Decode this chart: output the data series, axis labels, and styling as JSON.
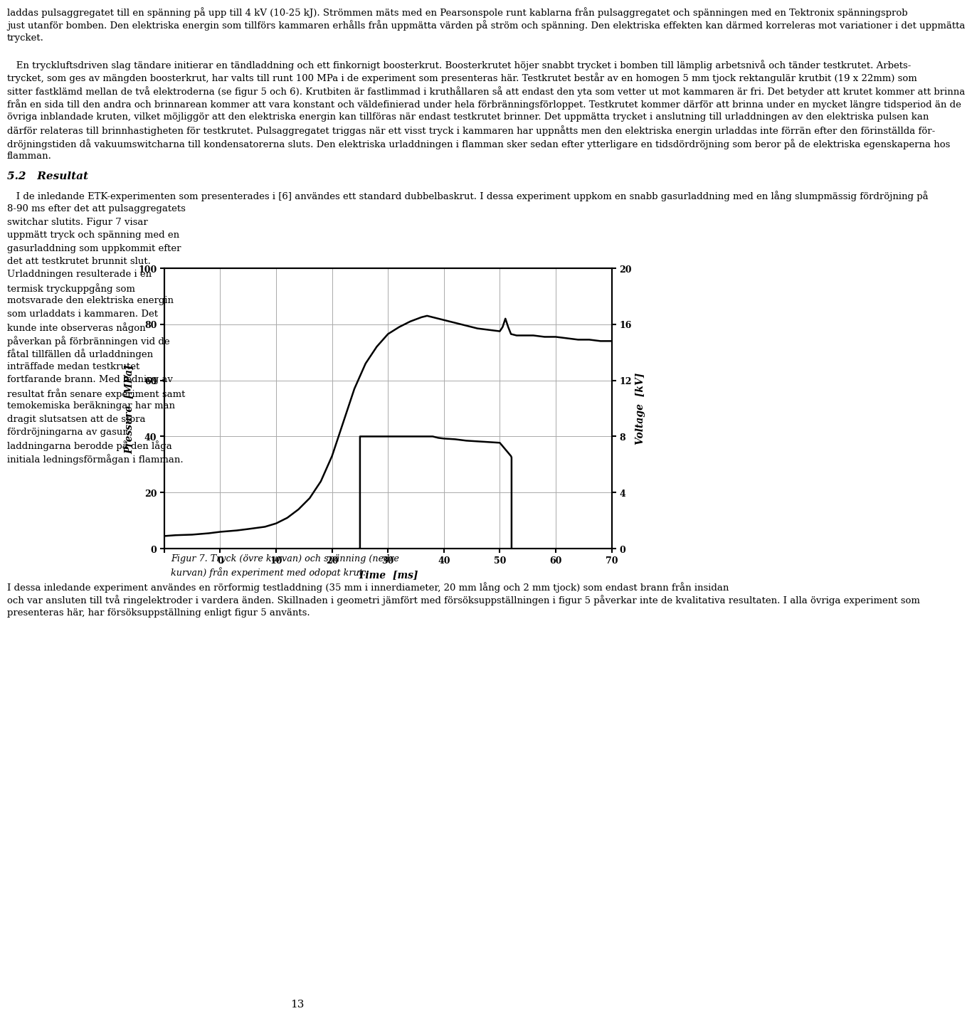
{
  "page_width": 9.6,
  "page_height": 14.88,
  "background_color": "#ffffff",
  "text_color": "#000000",
  "title_text": "5.2   Resultat",
  "fig7_caption": "Figur 7. Tryck (övre kurvan) och spänning (nedre\nkurvan) från experiment med odopat krut.",
  "chart": {
    "xlim": [
      -10,
      70
    ],
    "ylim_left": [
      0,
      100
    ],
    "ylim_right": [
      0,
      20
    ],
    "xlabel": "Time  [ms]",
    "ylabel_left": "Pressure  [MPa]",
    "ylabel_right": "Voltage  [kV]",
    "xticks": [
      -10,
      0,
      10,
      20,
      30,
      40,
      50,
      60,
      70
    ],
    "xtick_labels": [
      "",
      "0",
      "10",
      "20",
      "30",
      "40",
      "50",
      "60",
      "70"
    ],
    "yticks_left": [
      0,
      20,
      40,
      60,
      80,
      100
    ],
    "yticks_right": [
      0,
      4,
      8,
      12,
      16,
      20
    ],
    "pressure_x": [
      -10,
      -8,
      -5,
      -2,
      0,
      3,
      5,
      8,
      10,
      12,
      14,
      16,
      18,
      20,
      22,
      24,
      26,
      28,
      30,
      32,
      34,
      36,
      37,
      38,
      39,
      40,
      42,
      44,
      46,
      48,
      50,
      50.5,
      51,
      51.5,
      52,
      53,
      54,
      56,
      58,
      60,
      62,
      64,
      66,
      68,
      70
    ],
    "pressure_y": [
      4.5,
      4.8,
      5.0,
      5.5,
      6.0,
      6.5,
      7.0,
      7.8,
      9.0,
      11.0,
      14.0,
      18.0,
      24.0,
      33.0,
      45.0,
      57.0,
      66.0,
      72.0,
      76.5,
      79.0,
      81.0,
      82.5,
      83.0,
      82.5,
      82.0,
      81.5,
      80.5,
      79.5,
      78.5,
      78.0,
      77.5,
      79.0,
      82.0,
      79.0,
      76.5,
      76.0,
      76.0,
      76.0,
      75.5,
      75.5,
      75.0,
      74.5,
      74.5,
      74.0,
      74.0
    ],
    "voltage_x": [
      24.9,
      25.0,
      25.0,
      38.0,
      39.0,
      40.0,
      42.0,
      44.0,
      46.0,
      48.0,
      50.0,
      52.0,
      52.1,
      52.1
    ],
    "voltage_y_kv": [
      0.0,
      0.0,
      8.0,
      8.0,
      7.9,
      7.85,
      7.8,
      7.7,
      7.65,
      7.6,
      7.55,
      6.6,
      6.5,
      0.0
    ],
    "chart_title": "",
    "linewidth": 2.0,
    "line_color": "#000000",
    "grid_color": "#aaaaaa",
    "grid_linewidth": 0.7,
    "font_size_axis_label": 11,
    "font_size_tick": 10
  },
  "paragraphs": [
    "laddas pulsaggregatet till en spänning på upp till 4 kV (10-25 kJ). Strömmen mäts med en Pearsonspole runt kablarna från pulsaggregatet och spänningen med en Tektronix spänningsprob just utanför bomben. Den elektriska energin som tillförs kammaren erhålls från uppmätta värden på ström och spänning. Den elektriska effekten kan därmed korreleras mot variationer i det uppmätta trycket.",
    "   En tryckluftsdriven slag tändare initierar en tändladdning och ett finkornigt boosterkrut. Boosterkrutet höjer snabbt trycket i bomben till lämplig arbetsnivå och tänder testkrutet. Arbets-trycket, som ges av mängden boosterkrut, har valts till runt 100 MPa i de experiment som presenteras här. Testkrutet består av en homogen 5 mm tjock rektangulär krutbit (19 x 22mm) som sitter fastklämd mellan de två elektroderna (se figur 5 och 6). Krutbiten är fastlimmad i kruthållaren så att endast den yta som vetter ut mot kammaren är fri. Det betyder att krutet kommer att brinna från en sida till den andra och brinnarean kommer att vara konstant och väldefinierad under hela förbränningsförloppet. Testkrutet kommer därför att brinna under en mycket längre tidsperiod än de övriga inblandade kruten, vilket möjliggör att den elektriska energin kan tillföras när endast testkrutet brinner. Det uppmätta trycket i anslutning till urladdningen av den elektriska pulsen kan därför relateras till brinnhastigheten för testkrutet. Pulsaggregatet triggas när ett visst tryck i kammaren har uppnåtts men den elektriska energin urladdas inte förrän efter den förinställda för-dröjningstiden då vakuumswitcharna till kondensatorerna sluts. Den elektriska urladdningen i flamman sker sedan efter ytterligare en tidsdördröjning som beror på de elektriska egenskaperna hos flamman.",
    "I de inledande ETK-experimenten som presenterades i [6] användes ett standard dubbelbaskrut. I dessa experiment uppkom en snabb gasurladdning med en lång slumpmässig fördröjning på 8-90 ms efter det att pulsaggregatets switchar slutits. Figur 7 visar uppmätt tryck och spänning med en gasurladdning som uppkommit efter det att testkrutet brunnit slut. Urladdningen resulterade i en termisk tryckuppgång som motsvarade den elektriska energin som urladdats i kammaren. Det kunde inte observeras någon påverkan på förbränningen vid de fåtal tillfällen då urladdningen inträffade medan testkrutet fortfarande brann. Med ledning av resultat från senare experiment samt temokemiska beräkningar har man dragit slutsatsen att de stora fördröjningarna av gasur-laddningarna berodde på den låga initiala ledningsförmågan i flamman. I dessa inledande experiment användes en rörformig testladdning (35 mm i innerdiameter, 20 mm lång och 2 mm tjock) som endast brann från insidan och var ansluten till två ringelektroder i vardera änden. Skillnaden i geometri jämfört med försöksuppställningen i figur 5 påverkar inte de kvalitativa resultaten. I alla övriga experiment som presenteras här, har försöksuppställning enligt figur 5 använts."
  ],
  "page_number": "13"
}
